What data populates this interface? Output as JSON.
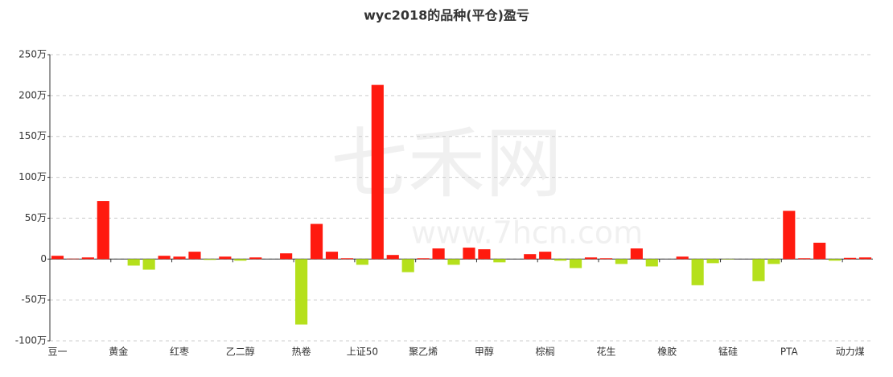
{
  "chart_data": {
    "type": "bar",
    "title": "wyc2018的品种(平仓)盈亏",
    "watermark": [
      "七禾网",
      "www.7hcn.com"
    ],
    "categories": [
      "豆一",
      null,
      null,
      null,
      "黄金",
      null,
      null,
      null,
      "红枣",
      null,
      null,
      null,
      "乙二醇",
      null,
      null,
      null,
      "热卷",
      null,
      null,
      null,
      "上证50",
      null,
      null,
      null,
      "聚乙烯",
      null,
      null,
      null,
      "甲醇",
      null,
      null,
      null,
      "棕榈",
      null,
      null,
      null,
      "花生",
      null,
      null,
      null,
      "橡胶",
      null,
      null,
      null,
      "锰硅",
      null,
      null,
      null,
      "PTA",
      null,
      null,
      null,
      "动力煤",
      null
    ],
    "values": [
      4,
      0.5,
      2,
      71,
      0,
      -8,
      -13,
      4,
      3,
      9,
      -1,
      3,
      -2,
      2,
      0,
      7,
      -80,
      43,
      9,
      1,
      -7,
      213,
      5,
      -16,
      1,
      13,
      -7,
      14,
      12,
      -4,
      0,
      6,
      9,
      -2,
      -11,
      2,
      1,
      -6,
      13,
      -9,
      0,
      3,
      -32,
      -5,
      -0.5,
      0,
      -27,
      -6,
      59,
      1,
      20,
      -2,
      1.5,
      2
    ],
    "positive_color": "#ff1a0f",
    "negative_color": "#b5e01c",
    "ylim": [
      -100,
      250
    ],
    "yticks": [
      {
        "value": -100,
        "label": "-100万"
      },
      {
        "value": -50,
        "label": "-50万"
      },
      {
        "value": 0,
        "label": "0"
      },
      {
        "value": 50,
        "label": "50万"
      },
      {
        "value": 100,
        "label": "100万"
      },
      {
        "value": 150,
        "label": "150万"
      },
      {
        "value": 200,
        "label": "200万"
      },
      {
        "value": 250,
        "label": "250万"
      }
    ],
    "grid": true
  }
}
